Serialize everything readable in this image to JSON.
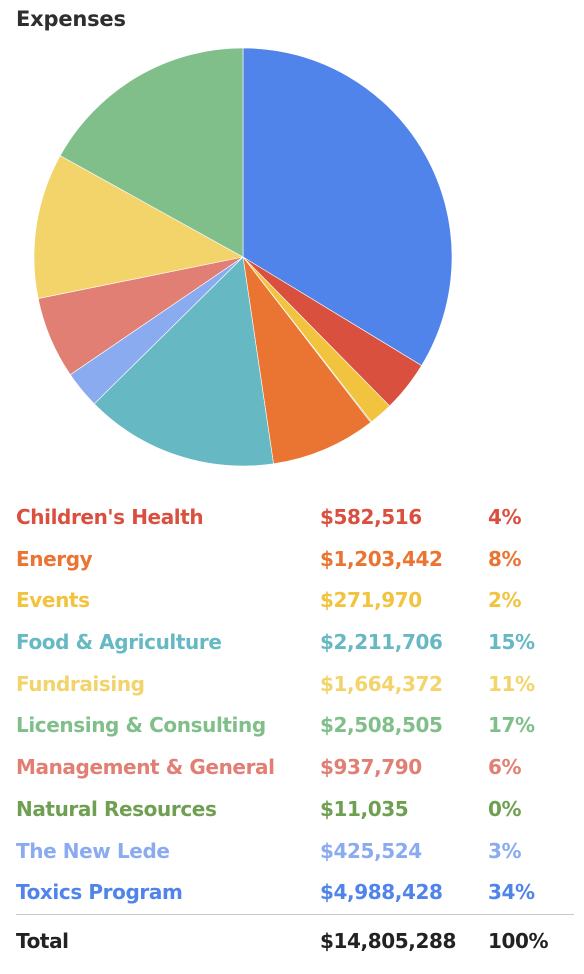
{
  "chart_data": {
    "type": "pie",
    "title": "Expenses",
    "slices": [
      {
        "label": "Children's Health",
        "value": 582516,
        "value_label": "$582,516",
        "percent_label": "4%",
        "color": "#d9503f"
      },
      {
        "label": "Energy",
        "value": 1203442,
        "value_label": "$1,203,442",
        "percent_label": "8%",
        "color": "#ea7431"
      },
      {
        "label": "Events",
        "value": 271970,
        "value_label": "$271,970",
        "percent_label": "2%",
        "color": "#f2c33f"
      },
      {
        "label": "Food & Agriculture",
        "value": 2211706,
        "value_label": "$2,211,706",
        "percent_label": "15%",
        "color": "#66b9c3"
      },
      {
        "label": "Fundraising",
        "value": 1664372,
        "value_label": "$1,664,372",
        "percent_label": "11%",
        "color": "#f2d46b"
      },
      {
        "label": "Licensing & Consulting",
        "value": 2508505,
        "value_label": "$2,508,505",
        "percent_label": "17%",
        "color": "#81bf8a"
      },
      {
        "label": "Management & General",
        "value": 937790,
        "value_label": "$937,790",
        "percent_label": "6%",
        "color": "#e17f74"
      },
      {
        "label": "Natural Resources",
        "value": 11035,
        "value_label": "$11,035",
        "percent_label": "0%",
        "color": "#6f9f51"
      },
      {
        "label": "The New Lede",
        "value": 425524,
        "value_label": "$425,524",
        "percent_label": "3%",
        "color": "#8aabef"
      },
      {
        "label": "Toxics Program",
        "value": 4988428,
        "value_label": "$4,988,428",
        "percent_label": "34%",
        "color": "#5084eb"
      }
    ],
    "pie_order": [
      "Toxics Program",
      "Children's Health",
      "Events",
      "Natural Resources",
      "Energy",
      "Food & Agriculture",
      "The New Lede",
      "Management & General",
      "Fundraising",
      "Licensing & Consulting"
    ],
    "total": {
      "label": "Total",
      "value": 14805288,
      "value_label": "$14,805,288",
      "percent_label": "100%"
    }
  }
}
